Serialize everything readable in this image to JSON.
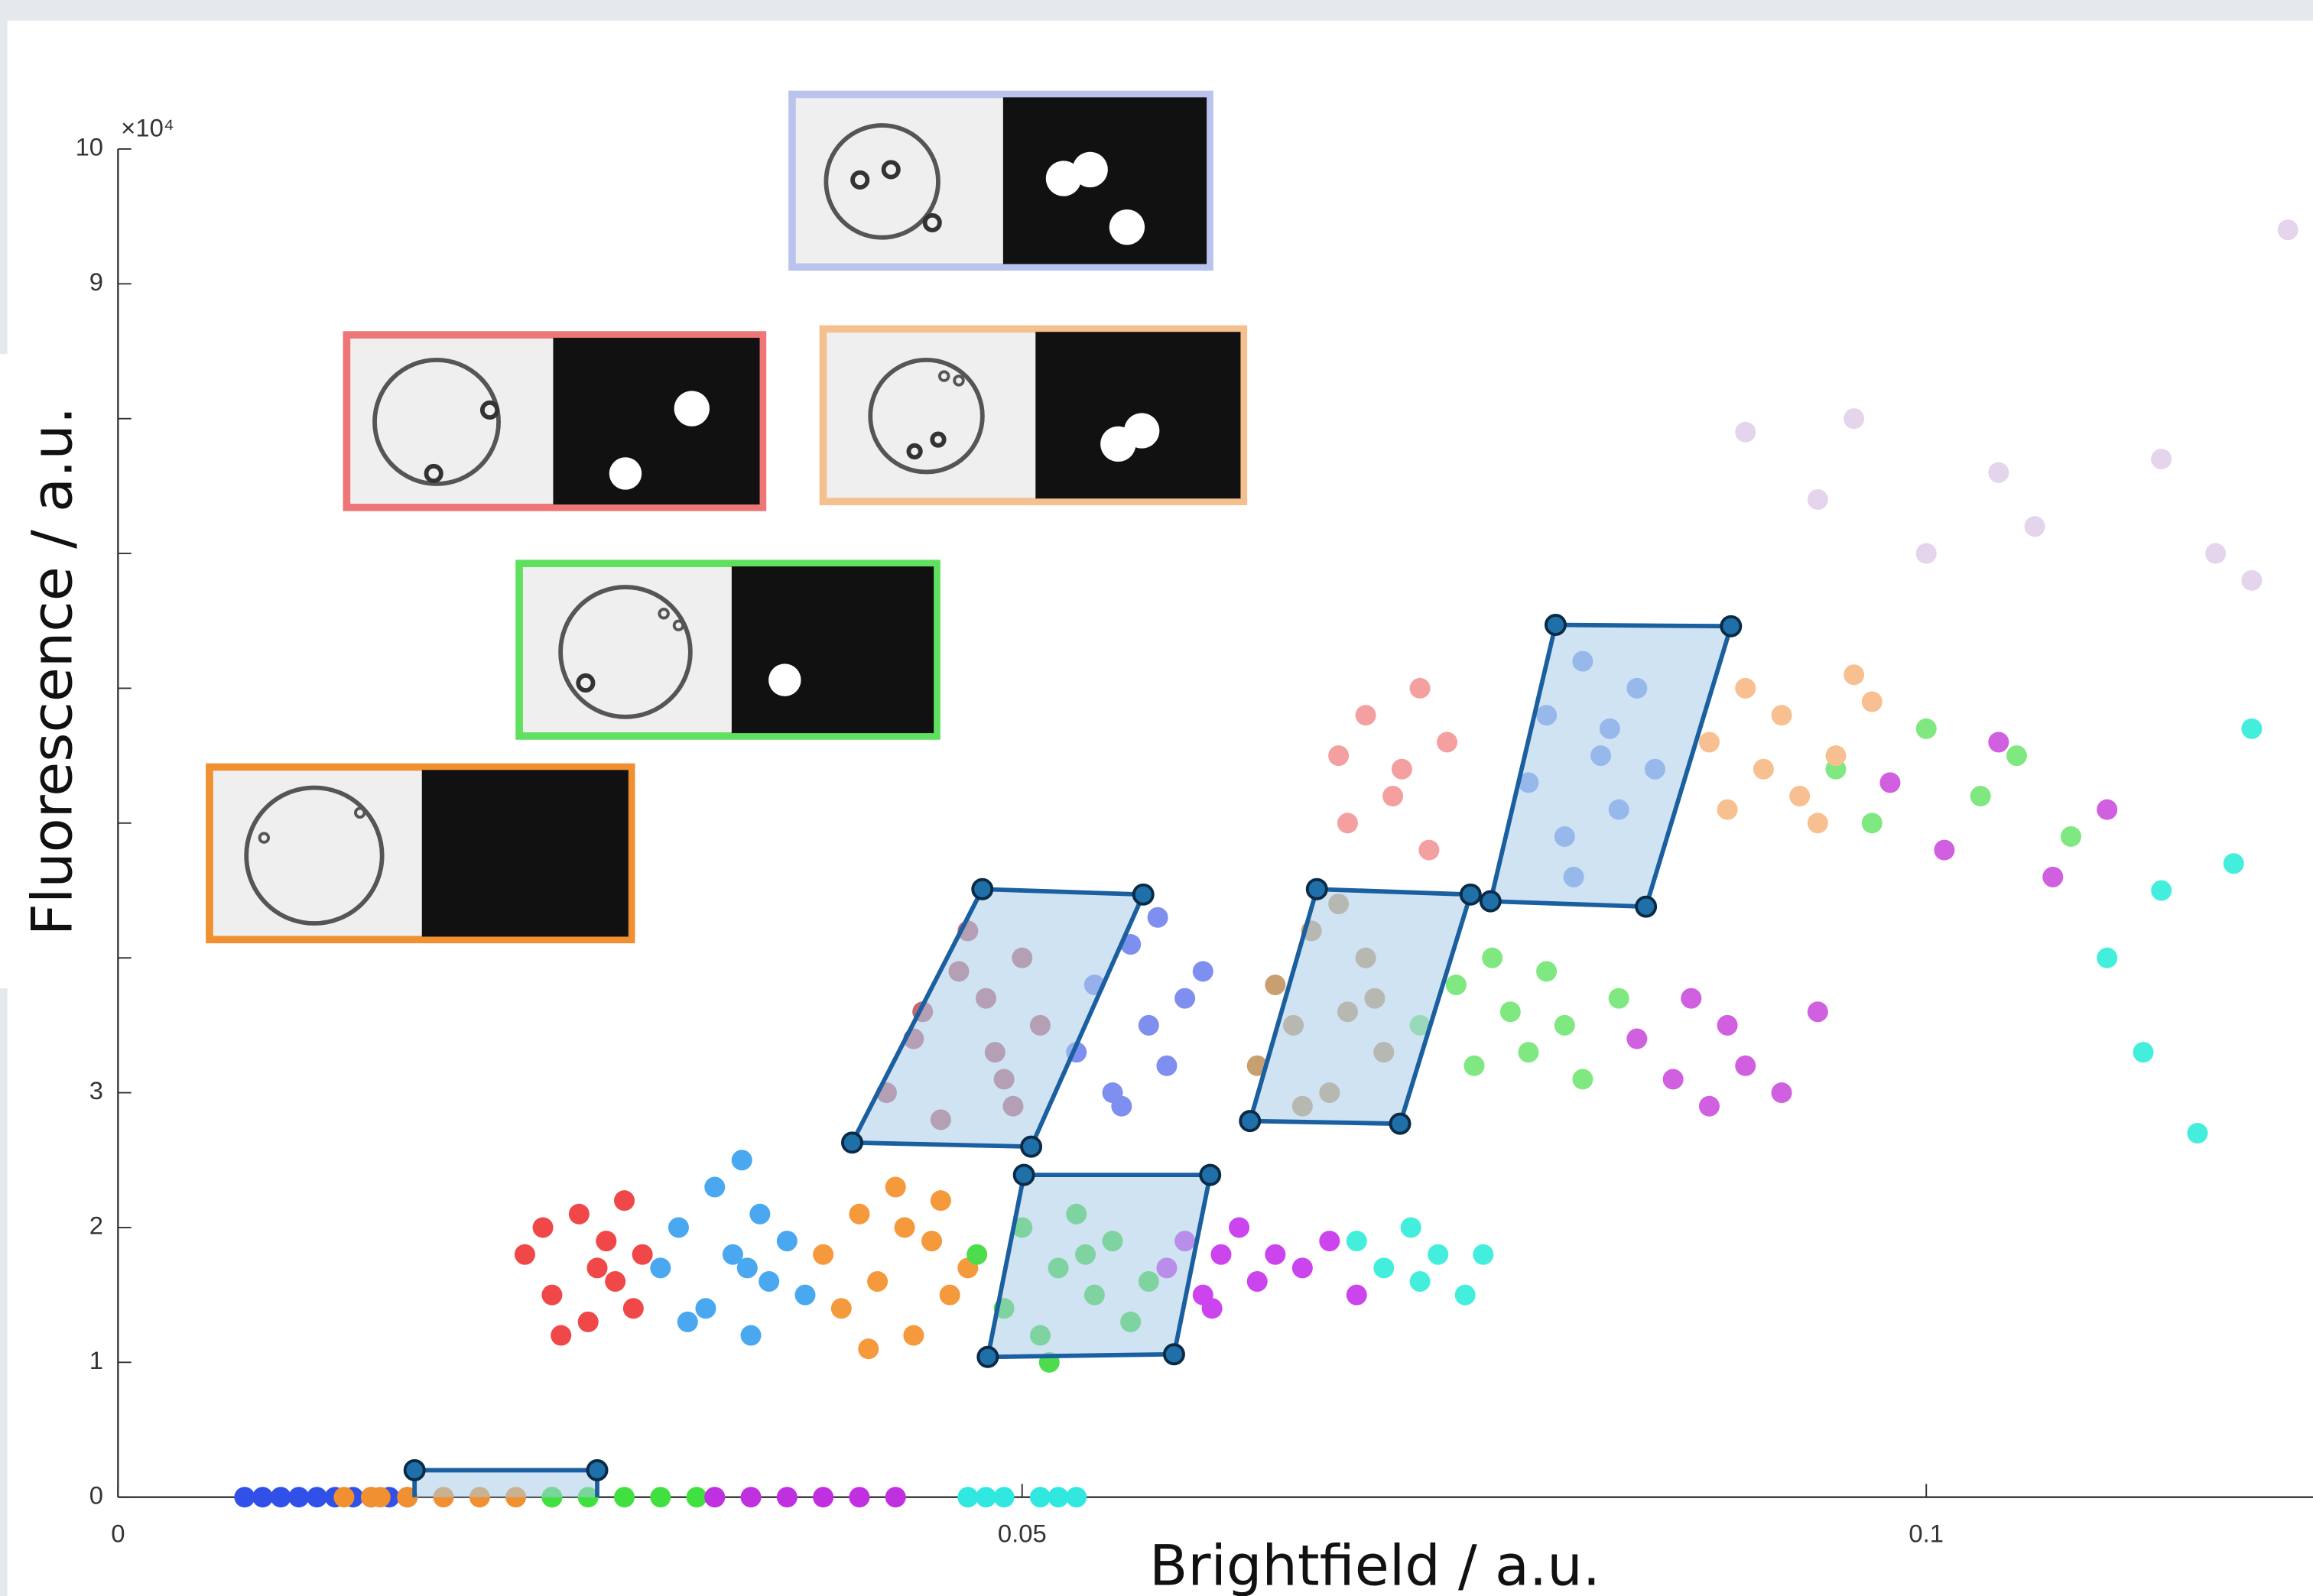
{
  "chart_data": {
    "type": "scatter",
    "xlabel": "Brightfield / a.u.",
    "ylabel": "Fluorescence / a.u.",
    "y_exponent_label": "×10⁴",
    "xlim": [
      0,
      0.12
    ],
    "ylim": [
      0,
      10
    ],
    "xticks": [
      0,
      0.05,
      0.1
    ],
    "yticks": [
      0,
      1,
      2,
      3,
      9,
      10
    ],
    "yticks_unlabeled": [
      4,
      5,
      6,
      7,
      8
    ],
    "series": [
      {
        "color": "#f04848",
        "x": [
          0.0225,
          0.024,
          0.0255,
          0.026,
          0.027,
          0.0275,
          0.028,
          0.029,
          0.0245,
          0.0265,
          0.0235,
          0.0285
        ],
        "y": [
          1.8,
          1.5,
          2.1,
          1.3,
          1.9,
          1.6,
          2.2,
          1.8,
          1.2,
          1.7,
          2.0,
          1.4
        ]
      },
      {
        "color": "#4aa8f0",
        "x": [
          0.03,
          0.031,
          0.0325,
          0.033,
          0.034,
          0.035,
          0.0355,
          0.036,
          0.037,
          0.038,
          0.0345,
          0.0315,
          0.0348
        ],
        "y": [
          1.7,
          2.0,
          1.4,
          2.3,
          1.8,
          1.2,
          2.1,
          1.6,
          1.9,
          1.5,
          2.5,
          1.3,
          1.7
        ]
      },
      {
        "color": "#f5993d",
        "x": [
          0.039,
          0.04,
          0.041,
          0.042,
          0.043,
          0.044,
          0.045,
          0.046,
          0.047,
          0.0415,
          0.0435,
          0.0455
        ],
        "y": [
          1.8,
          1.4,
          2.1,
          1.6,
          2.3,
          1.2,
          1.9,
          1.5,
          1.7,
          1.1,
          2.0,
          2.2
        ]
      },
      {
        "color": "#4cdc4c",
        "x": [
          0.0475,
          0.049,
          0.05,
          0.051,
          0.052,
          0.053,
          0.054,
          0.055,
          0.056,
          0.057,
          0.0515,
          0.0535
        ],
        "y": [
          1.8,
          1.4,
          2.0,
          1.2,
          1.7,
          2.1,
          1.5,
          1.9,
          1.3,
          1.6,
          1.0,
          1.8
        ]
      },
      {
        "color": "#cc44ee",
        "x": [
          0.058,
          0.059,
          0.06,
          0.061,
          0.062,
          0.063,
          0.064,
          0.0655,
          0.067,
          0.0685,
          0.0605
        ],
        "y": [
          1.7,
          1.9,
          1.5,
          1.8,
          2.0,
          1.6,
          1.8,
          1.7,
          1.9,
          1.5,
          1.4
        ]
      },
      {
        "color": "#44eedd",
        "x": [
          0.0685,
          0.07,
          0.0715,
          0.073,
          0.0745,
          0.0755,
          0.072,
          0.11,
          0.112,
          0.113,
          0.115,
          0.117,
          0.118
        ],
        "y": [
          1.9,
          1.7,
          2.0,
          1.8,
          1.5,
          1.8,
          1.6,
          4.0,
          3.3,
          4.5,
          2.7,
          4.7,
          5.7
        ]
      },
      {
        "color": "#c06878",
        "x": [
          0.0425,
          0.044,
          0.0455,
          0.047,
          0.048,
          0.049,
          0.05,
          0.051,
          0.0465,
          0.0485,
          0.0445,
          0.0495
        ],
        "y": [
          3.0,
          3.4,
          2.8,
          4.2,
          3.7,
          3.1,
          4.0,
          3.5,
          3.9,
          3.3,
          3.6,
          2.9
        ]
      },
      {
        "color": "#7f8ff0",
        "x": [
          0.053,
          0.054,
          0.055,
          0.056,
          0.057,
          0.058,
          0.059,
          0.06,
          0.0555,
          0.0575
        ],
        "y": [
          3.3,
          3.8,
          3.0,
          4.1,
          3.5,
          3.2,
          3.7,
          3.9,
          2.9,
          4.3
        ]
      },
      {
        "color": "#c8a070",
        "x": [
          0.063,
          0.064,
          0.065,
          0.066,
          0.067,
          0.068,
          0.069,
          0.07,
          0.0655,
          0.0675,
          0.0695
        ],
        "y": [
          3.2,
          3.8,
          3.5,
          4.2,
          3.0,
          3.6,
          4.0,
          3.3,
          2.9,
          4.4,
          3.7
        ]
      },
      {
        "color": "#80e880",
        "x": [
          0.072,
          0.074,
          0.075,
          0.076,
          0.077,
          0.078,
          0.079,
          0.08,
          0.081,
          0.083,
          0.095,
          0.097,
          0.1,
          0.103,
          0.105,
          0.108
        ],
        "y": [
          3.5,
          3.8,
          3.2,
          4.0,
          3.6,
          3.3,
          3.9,
          3.5,
          3.1,
          3.7,
          5.4,
          5.0,
          5.7,
          5.2,
          5.5,
          4.9
        ]
      },
      {
        "color": "#d060e0",
        "x": [
          0.084,
          0.086,
          0.087,
          0.088,
          0.089,
          0.09,
          0.092,
          0.094,
          0.098,
          0.101,
          0.104,
          0.107,
          0.11
        ],
        "y": [
          3.4,
          3.1,
          3.7,
          2.9,
          3.5,
          3.2,
          3.0,
          3.6,
          5.3,
          4.8,
          5.6,
          4.6,
          5.1
        ]
      },
      {
        "color": "#f5a0a0",
        "x": [
          0.0675,
          0.069,
          0.0705,
          0.072,
          0.0735,
          0.068,
          0.071,
          0.0725
        ],
        "y": [
          5.5,
          5.8,
          5.2,
          6.0,
          5.6,
          5.0,
          5.4,
          4.8
        ]
      },
      {
        "color": "#80a0f0",
        "x": [
          0.078,
          0.079,
          0.08,
          0.081,
          0.082,
          0.083,
          0.084,
          0.085,
          0.0805,
          0.0825
        ],
        "y": [
          5.3,
          5.8,
          4.9,
          6.2,
          5.5,
          5.1,
          6.0,
          5.4,
          4.6,
          5.7
        ]
      },
      {
        "color": "#f8c090",
        "x": [
          0.088,
          0.089,
          0.09,
          0.091,
          0.092,
          0.093,
          0.095,
          0.097,
          0.094,
          0.096
        ],
        "y": [
          5.6,
          5.1,
          6.0,
          5.4,
          5.8,
          5.2,
          5.5,
          5.9,
          5.0,
          6.1
        ]
      },
      {
        "color": "#e4d4ec",
        "x": [
          0.09,
          0.094,
          0.096,
          0.1,
          0.104,
          0.106,
          0.113,
          0.116,
          0.118,
          0.12
        ],
        "y": [
          7.9,
          7.4,
          8.0,
          7.0,
          7.6,
          7.2,
          7.7,
          7.0,
          6.8,
          9.4
        ]
      },
      {
        "color": "#3050e8",
        "x": [
          0.007,
          0.008,
          0.009,
          0.01,
          0.011,
          0.012,
          0.013,
          0.014,
          0.015,
          0.016
        ],
        "y": [
          0,
          0,
          0,
          0,
          0,
          0,
          0,
          0,
          0,
          0
        ]
      },
      {
        "color": "#f09030",
        "x": [
          0.0125,
          0.014,
          0.0145,
          0.016,
          0.018,
          0.02,
          0.022,
          0.024
        ],
        "y": [
          0,
          0,
          0,
          0,
          0,
          0,
          0,
          0
        ]
      },
      {
        "color": "#40e040",
        "x": [
          0.024,
          0.026,
          0.028,
          0.03,
          0.032,
          0.033
        ],
        "y": [
          0,
          0,
          0,
          0,
          0,
          0
        ]
      },
      {
        "color": "#c030e0",
        "x": [
          0.033,
          0.035,
          0.037,
          0.039,
          0.041,
          0.043
        ],
        "y": [
          0,
          0,
          0,
          0,
          0,
          0
        ]
      },
      {
        "color": "#30e8e0",
        "x": [
          0.047,
          0.048,
          0.049,
          0.051,
          0.052,
          0.053
        ],
        "y": [
          0,
          0,
          0,
          0,
          0,
          0
        ]
      }
    ],
    "gates": [
      {
        "x": [
          0.0478,
          0.0567,
          0.0505,
          0.0406
        ],
        "y": [
          4.51,
          4.47,
          2.6,
          2.63
        ]
      },
      {
        "x": [
          0.0663,
          0.0748,
          0.0709,
          0.0626
        ],
        "y": [
          4.51,
          4.47,
          2.77,
          2.79
        ]
      },
      {
        "x": [
          0.0795,
          0.0892,
          0.0845,
          0.0759
        ],
        "y": [
          6.47,
          6.46,
          4.38,
          4.42
        ]
      },
      {
        "x": [
          0.0501,
          0.0604,
          0.0584,
          0.0481
        ],
        "y": [
          2.39,
          2.39,
          1.06,
          1.04
        ]
      },
      {
        "x": [
          0.0164,
          0.0265
        ],
        "y": [
          0.2,
          0.2
        ]
      }
    ],
    "gate_color": "#1a5fa0",
    "gate_fill": "#a9cce8"
  }
}
